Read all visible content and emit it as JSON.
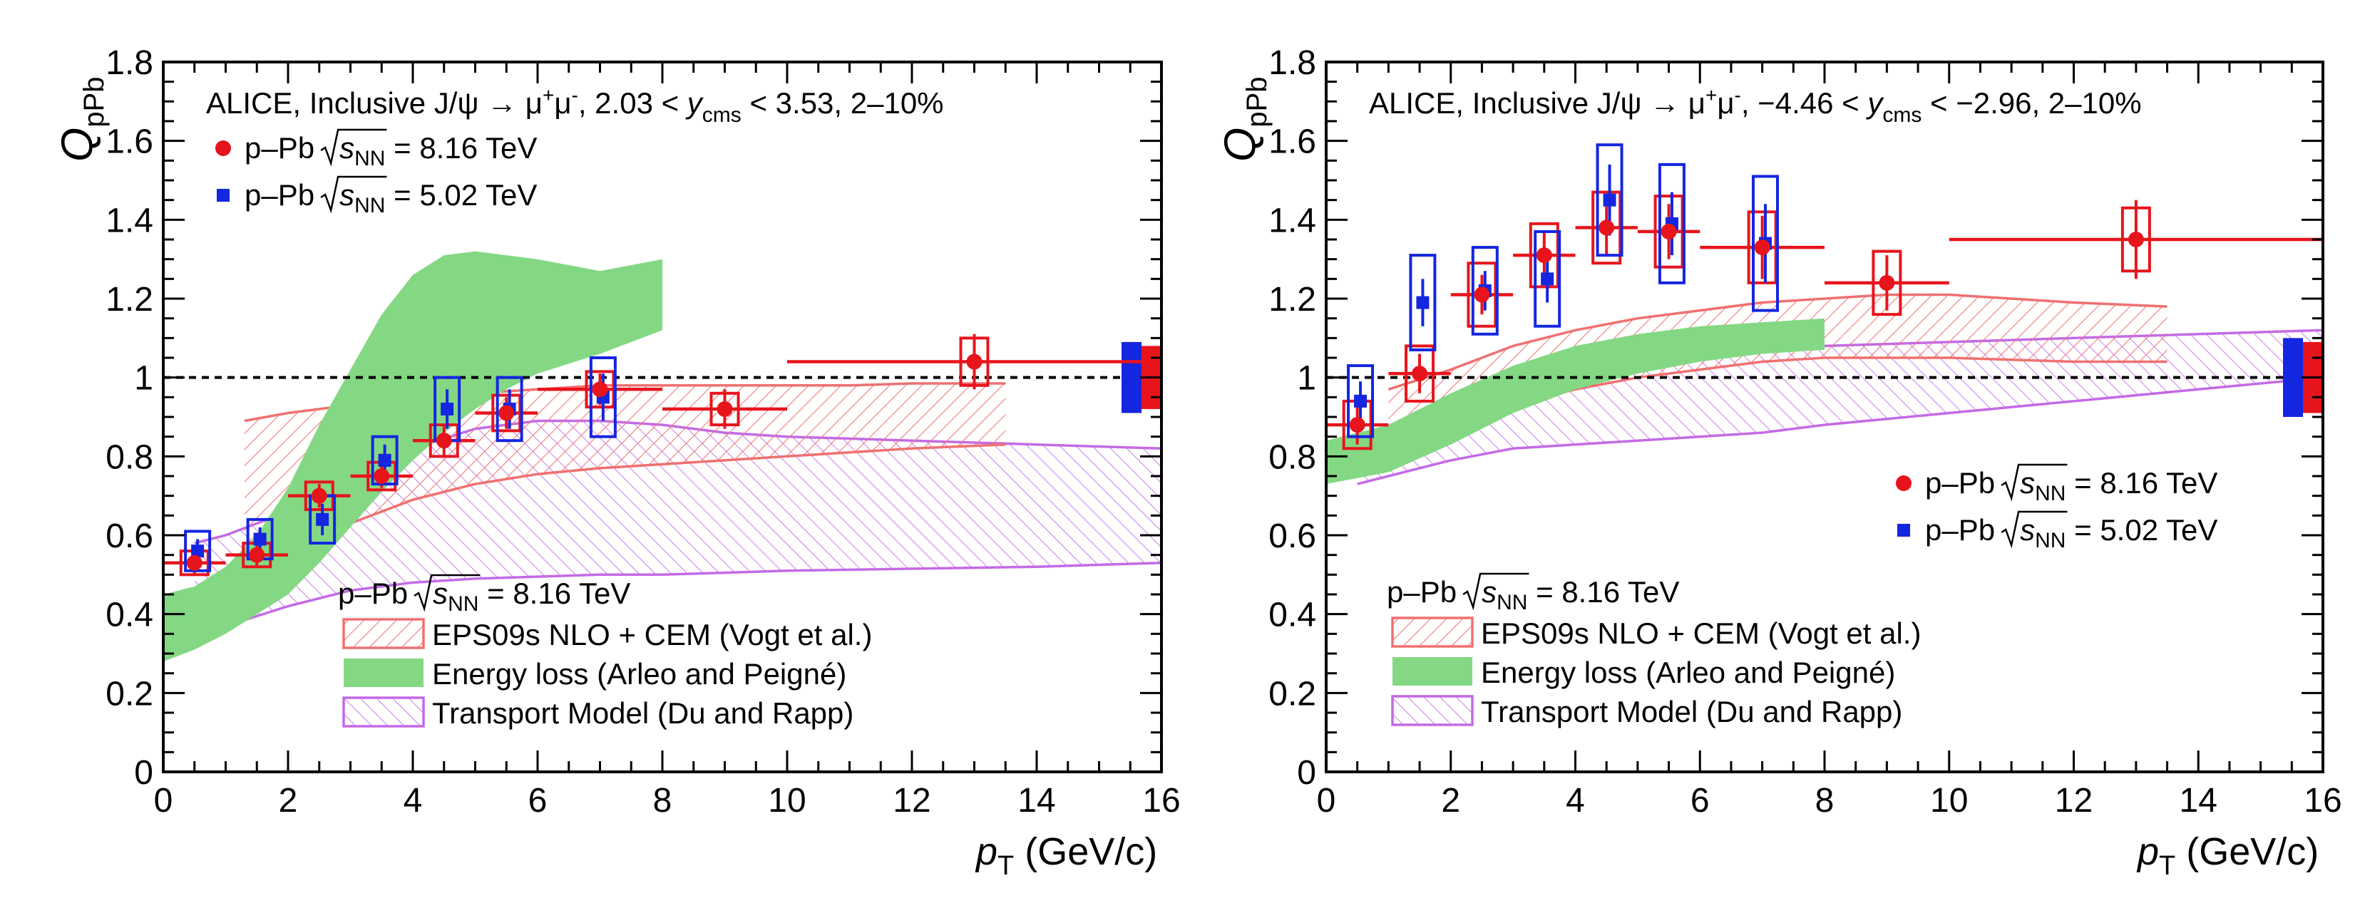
{
  "chart_data": [
    {
      "type": "scatter",
      "panel": "forward",
      "title": "ALICE, Inclusive J/ψ → μ⁺μ⁻, 2.03 < y_cms < 3.53, 2–10%",
      "title_parts": [
        "ALICE, Inclusive J/ψ → μ",
        "+",
        "μ",
        "-",
        ", 2.03 < ",
        "y",
        "cms",
        " < 3.53, 2–10%"
      ],
      "xlabel": "p_T (GeV/c)",
      "ylabel": "Q_pPb",
      "xlim": [
        0,
        16
      ],
      "ylim": [
        0,
        1.8
      ],
      "xticks": [
        "0",
        "2",
        "4",
        "6",
        "8",
        "10",
        "12",
        "14",
        "16"
      ],
      "yticks": [
        "0",
        "0.2",
        "0.4",
        "0.6",
        "0.8",
        "1",
        "1.2",
        "1.4",
        "1.6",
        "1.8"
      ],
      "legend_data": [
        {
          "label": "p–Pb √s_NN = 8.16 TeV",
          "parts": [
            "p–Pb ",
            "s",
            "NN",
            " = 8.16 TeV"
          ],
          "color": "#e8141b",
          "marker": "circle"
        },
        {
          "label": "p–Pb √s_NN = 5.02 TeV",
          "parts": [
            "p–Pb ",
            "s",
            "NN",
            " = 5.02 TeV"
          ],
          "color": "#1426e0",
          "marker": "square"
        }
      ],
      "model_legend_header": [
        "p–Pb ",
        "s",
        "NN",
        " = 8.16 TeV"
      ],
      "model_legend": [
        {
          "label": "EPS09s NLO + CEM (Vogt et al.)",
          "kind": "hatch-red"
        },
        {
          "label": "Energy loss (Arleo and Peigné)",
          "kind": "green"
        },
        {
          "label": "Transport Model (Du and Rapp)",
          "kind": "hatch-violet"
        }
      ],
      "series": [
        {
          "name": "p–Pb 8.16 TeV",
          "color": "#e8141b",
          "marker": "circle",
          "points": [
            {
              "x": 0.5,
              "xerr": 0.5,
              "y": 0.53,
              "stat": 0.03,
              "syst": 0.03
            },
            {
              "x": 1.5,
              "xerr": 0.5,
              "y": 0.55,
              "stat": 0.03,
              "syst": 0.03
            },
            {
              "x": 2.5,
              "xerr": 0.5,
              "y": 0.7,
              "stat": 0.03,
              "syst": 0.035
            },
            {
              "x": 3.5,
              "xerr": 0.5,
              "y": 0.75,
              "stat": 0.03,
              "syst": 0.035
            },
            {
              "x": 4.5,
              "xerr": 0.5,
              "y": 0.84,
              "stat": 0.04,
              "syst": 0.04
            },
            {
              "x": 5.5,
              "xerr": 0.5,
              "y": 0.91,
              "stat": 0.04,
              "syst": 0.045
            },
            {
              "x": 7.0,
              "xerr": 1.0,
              "y": 0.97,
              "stat": 0.04,
              "syst": 0.045
            },
            {
              "x": 9.0,
              "xerr": 1.0,
              "y": 0.92,
              "stat": 0.05,
              "syst": 0.04
            },
            {
              "x": 13.0,
              "xerr": 3.0,
              "y": 1.04,
              "stat": 0.07,
              "syst": 0.06
            }
          ]
        },
        {
          "name": "p–Pb 5.02 TeV",
          "color": "#1426e0",
          "marker": "square",
          "points": [
            {
              "x": 0.55,
              "y": 0.56,
              "stat": 0.03,
              "syst": 0.05
            },
            {
              "x": 1.55,
              "y": 0.59,
              "stat": 0.03,
              "syst": 0.05
            },
            {
              "x": 2.55,
              "y": 0.64,
              "stat": 0.04,
              "syst": 0.06
            },
            {
              "x": 3.55,
              "y": 0.79,
              "stat": 0.04,
              "syst": 0.06
            },
            {
              "x": 4.55,
              "y": 0.92,
              "stat": 0.05,
              "syst": 0.08
            },
            {
              "x": 5.55,
              "y": 0.92,
              "stat": 0.05,
              "syst": 0.08
            },
            {
              "x": 7.05,
              "y": 0.95,
              "stat": 0.06,
              "syst": 0.1
            }
          ]
        }
      ],
      "bands": {
        "eps09": {
          "x": [
            1.3,
            2,
            3,
            4,
            5,
            6,
            7,
            8,
            9,
            10,
            11,
            12,
            13.5
          ],
          "upper": [
            0.89,
            0.91,
            0.93,
            0.95,
            0.96,
            0.97,
            0.98,
            0.98,
            0.98,
            0.98,
            0.98,
            0.985,
            0.985
          ],
          "lower": [
            0.54,
            0.57,
            0.63,
            0.69,
            0.73,
            0.755,
            0.77,
            0.78,
            0.79,
            0.8,
            0.81,
            0.82,
            0.83
          ]
        },
        "energy_loss": {
          "x": [
            0,
            0.5,
            1,
            1.5,
            2,
            2.5,
            3,
            3.5,
            4,
            4.5,
            5,
            5.5,
            6,
            7,
            8
          ],
          "upper": [
            0.45,
            0.47,
            0.52,
            0.6,
            0.72,
            0.88,
            1.02,
            1.16,
            1.26,
            1.31,
            1.32,
            1.31,
            1.3,
            1.27,
            1.3
          ],
          "lower": [
            0.28,
            0.31,
            0.35,
            0.4,
            0.45,
            0.53,
            0.62,
            0.71,
            0.79,
            0.86,
            0.92,
            0.97,
            1.01,
            1.06,
            1.12
          ]
        },
        "transport": {
          "x": [
            0.5,
            1,
            2,
            3,
            4,
            5,
            6,
            7,
            8,
            9,
            10,
            12,
            14,
            16
          ],
          "upper": [
            0.58,
            0.6,
            0.66,
            0.74,
            0.82,
            0.87,
            0.89,
            0.89,
            0.88,
            0.86,
            0.85,
            0.84,
            0.83,
            0.82
          ],
          "lower": [
            0.35,
            0.37,
            0.42,
            0.46,
            0.48,
            0.49,
            0.495,
            0.5,
            0.5,
            0.505,
            0.51,
            0.515,
            0.52,
            0.53
          ]
        }
      },
      "global_uncertainty": [
        {
          "color": "#1426e0",
          "y": 1.0,
          "half": 0.09
        },
        {
          "color": "#e8141b",
          "y": 1.0,
          "half": 0.08
        }
      ]
    },
    {
      "type": "scatter",
      "panel": "backward",
      "title": "ALICE, Inclusive J/ψ → μ⁺μ⁻, −4.46 < y_cms < −2.96, 2–10%",
      "title_parts": [
        "ALICE, Inclusive J/ψ → μ",
        "+",
        "μ",
        "-",
        ", −4.46 < ",
        "y",
        "cms",
        " < −2.96, 2–10%"
      ],
      "xlabel": "p_T (GeV/c)",
      "ylabel": "Q_pPb",
      "xlim": [
        0,
        16
      ],
      "ylim": [
        0,
        1.8
      ],
      "xticks": [
        "0",
        "2",
        "4",
        "6",
        "8",
        "10",
        "12",
        "14",
        "16"
      ],
      "yticks": [
        "0",
        "0.2",
        "0.4",
        "0.6",
        "0.8",
        "1",
        "1.2",
        "1.4",
        "1.6",
        "1.8"
      ],
      "legend_data": [
        {
          "label": "p–Pb √s_NN = 8.16 TeV",
          "parts": [
            "p–Pb ",
            "s",
            "NN",
            " = 8.16 TeV"
          ],
          "color": "#e8141b",
          "marker": "circle"
        },
        {
          "label": "p–Pb √s_NN = 5.02 TeV",
          "parts": [
            "p–Pb ",
            "s",
            "NN",
            " = 5.02 TeV"
          ],
          "color": "#1426e0",
          "marker": "square"
        }
      ],
      "model_legend_header": [
        "p–Pb ",
        "s",
        "NN",
        " = 8.16 TeV"
      ],
      "model_legend": [
        {
          "label": "EPS09s NLO + CEM (Vogt et al.)",
          "kind": "hatch-red"
        },
        {
          "label": "Energy loss (Arleo and Peigné)",
          "kind": "green"
        },
        {
          "label": "Transport Model (Du and Rapp)",
          "kind": "hatch-violet"
        }
      ],
      "series": [
        {
          "name": "p–Pb 8.16 TeV",
          "color": "#e8141b",
          "marker": "circle",
          "points": [
            {
              "x": 0.5,
              "xerr": 0.5,
              "y": 0.88,
              "stat": 0.05,
              "syst": 0.06
            },
            {
              "x": 1.5,
              "xerr": 0.5,
              "y": 1.01,
              "stat": 0.05,
              "syst": 0.07
            },
            {
              "x": 2.5,
              "xerr": 0.5,
              "y": 1.21,
              "stat": 0.05,
              "syst": 0.08
            },
            {
              "x": 3.5,
              "xerr": 0.5,
              "y": 1.31,
              "stat": 0.06,
              "syst": 0.08
            },
            {
              "x": 4.5,
              "xerr": 0.5,
              "y": 1.38,
              "stat": 0.07,
              "syst": 0.09
            },
            {
              "x": 5.5,
              "xerr": 0.5,
              "y": 1.37,
              "stat": 0.07,
              "syst": 0.09
            },
            {
              "x": 7.0,
              "xerr": 1.0,
              "y": 1.33,
              "stat": 0.08,
              "syst": 0.09
            },
            {
              "x": 9.0,
              "xerr": 1.0,
              "y": 1.24,
              "stat": 0.07,
              "syst": 0.08
            },
            {
              "x": 13.0,
              "xerr": 3.0,
              "y": 1.35,
              "stat": 0.1,
              "syst": 0.08
            }
          ]
        },
        {
          "name": "p–Pb 5.02 TeV",
          "color": "#1426e0",
          "marker": "square",
          "points": [
            {
              "x": 0.55,
              "y": 0.94,
              "stat": 0.05,
              "syst": 0.09
            },
            {
              "x": 1.55,
              "y": 1.19,
              "stat": 0.06,
              "syst": 0.12
            },
            {
              "x": 2.55,
              "y": 1.22,
              "stat": 0.05,
              "syst": 0.11
            },
            {
              "x": 3.55,
              "y": 1.25,
              "stat": 0.06,
              "syst": 0.12
            },
            {
              "x": 4.55,
              "y": 1.45,
              "stat": 0.09,
              "syst": 0.14
            },
            {
              "x": 5.55,
              "y": 1.39,
              "stat": 0.08,
              "syst": 0.15
            },
            {
              "x": 7.05,
              "y": 1.34,
              "stat": 0.1,
              "syst": 0.17
            }
          ]
        }
      ],
      "bands": {
        "eps09": {
          "x": [
            1,
            2,
            3,
            4,
            5,
            6,
            7,
            8,
            9,
            10,
            11,
            12,
            13.5
          ],
          "upper": [
            0.97,
            1.02,
            1.08,
            1.12,
            1.15,
            1.17,
            1.19,
            1.2,
            1.21,
            1.21,
            1.2,
            1.19,
            1.18
          ],
          "lower": [
            0.82,
            0.87,
            0.93,
            0.97,
            1.0,
            1.02,
            1.04,
            1.05,
            1.05,
            1.05,
            1.045,
            1.04,
            1.04
          ]
        },
        "energy_loss": {
          "x": [
            0,
            1,
            2,
            3,
            4,
            5,
            6,
            7,
            8
          ],
          "upper": [
            0.84,
            0.88,
            0.96,
            1.03,
            1.08,
            1.11,
            1.13,
            1.14,
            1.15
          ],
          "lower": [
            0.73,
            0.76,
            0.83,
            0.91,
            0.97,
            1.01,
            1.04,
            1.06,
            1.07
          ]
        },
        "transport": {
          "x": [
            0.5,
            1,
            2,
            3,
            4,
            5,
            6,
            7,
            8,
            10,
            12,
            14,
            16
          ],
          "upper": [
            0.85,
            0.87,
            0.91,
            0.95,
            1.0,
            1.04,
            1.06,
            1.07,
            1.08,
            1.09,
            1.1,
            1.11,
            1.12
          ],
          "lower": [
            0.73,
            0.75,
            0.79,
            0.82,
            0.83,
            0.84,
            0.85,
            0.86,
            0.88,
            0.91,
            0.94,
            0.97,
            1.0
          ]
        }
      },
      "global_uncertainty": [
        {
          "color": "#1426e0",
          "y": 1.0,
          "half": 0.1
        },
        {
          "color": "#e8141b",
          "y": 1.0,
          "half": 0.09
        }
      ]
    }
  ]
}
